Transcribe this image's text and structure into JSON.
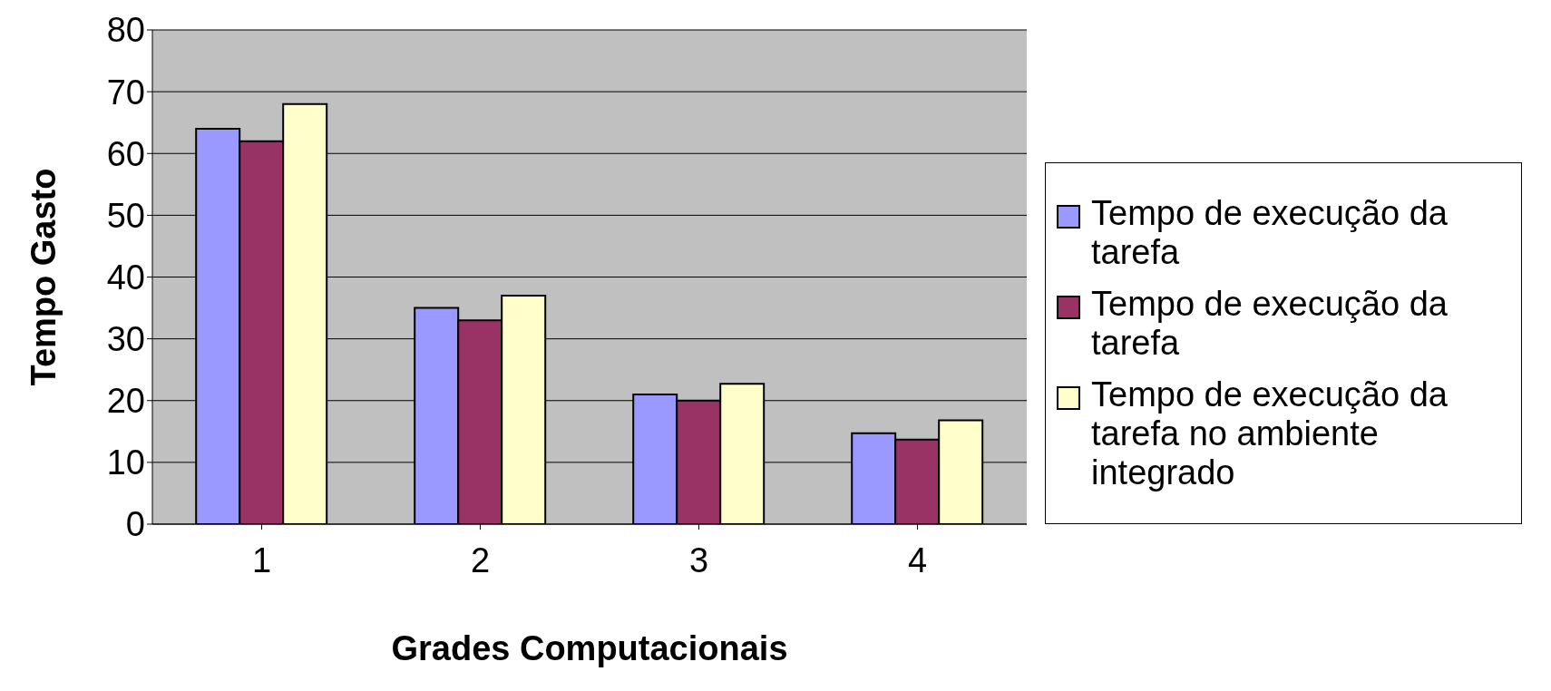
{
  "chart_data": {
    "type": "bar",
    "xlabel": "Grades Computacionais",
    "ylabel": "Tempo Gasto",
    "categories": [
      "1",
      "2",
      "3",
      "4"
    ],
    "series": [
      {
        "name": "Tempo de execução da tarefa",
        "color": "#9999ff",
        "values": [
          64,
          35,
          21,
          14.7
        ]
      },
      {
        "name": "Tempo de execução da tarefa",
        "color": "#993366",
        "values": [
          62,
          33,
          20,
          13.7
        ]
      },
      {
        "name": "Tempo de execução da tarefa no ambiente integrado",
        "color": "#ffffcc",
        "values": [
          68,
          37,
          22.7,
          16.8
        ]
      }
    ],
    "ylim": [
      0,
      80
    ],
    "yticks": [
      0,
      10,
      20,
      30,
      40,
      50,
      60,
      70,
      80
    ],
    "grid": "y",
    "legend": "right"
  }
}
